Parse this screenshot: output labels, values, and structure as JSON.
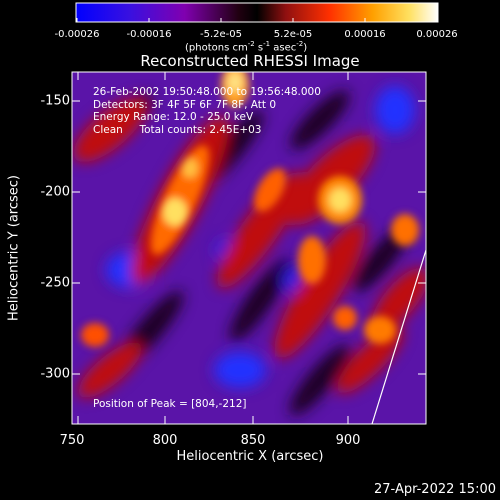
{
  "colorbar": {
    "ticks": [
      "-0.00026",
      "-0.00016",
      "-5.2e-05",
      "5.2e-05",
      "0.00016",
      "0.00026"
    ],
    "units_prefix": "(photons cm",
    "units_exp1": "-2",
    "units_mid": " s",
    "units_exp2": "-1",
    "units_mid2": " asec",
    "units_exp3": "-2",
    "units_suffix": ")",
    "colors": [
      "#0000ff",
      "#5000d0",
      "#8a00b0",
      "#000000",
      "#d01010",
      "#ff6000",
      "#ffc000",
      "#ffffa0",
      "#ffffff"
    ]
  },
  "title": "Reconstructed RHESSI Image",
  "info_lines": [
    "26-Feb-2002 19:50:48.000 to 19:56:48.000",
    "Detectors: 3F 4F 5F 6F 7F 8F, Att 0",
    "Energy Range: 12.0 - 25.0 keV",
    "Clean     Total counts: 2.45E+03"
  ],
  "peak_text": "Position of Peak = [804,-212]",
  "x_axis": {
    "label": "Heliocentric X (arcsec)",
    "ticks": [
      "750",
      "800",
      "850",
      "900"
    ]
  },
  "y_axis": {
    "label": "Heliocentric Y (arcsec)",
    "ticks": [
      "-150",
      "-200",
      "-250",
      "-300"
    ]
  },
  "timestamp": "27-Apr-2022 15:00"
}
